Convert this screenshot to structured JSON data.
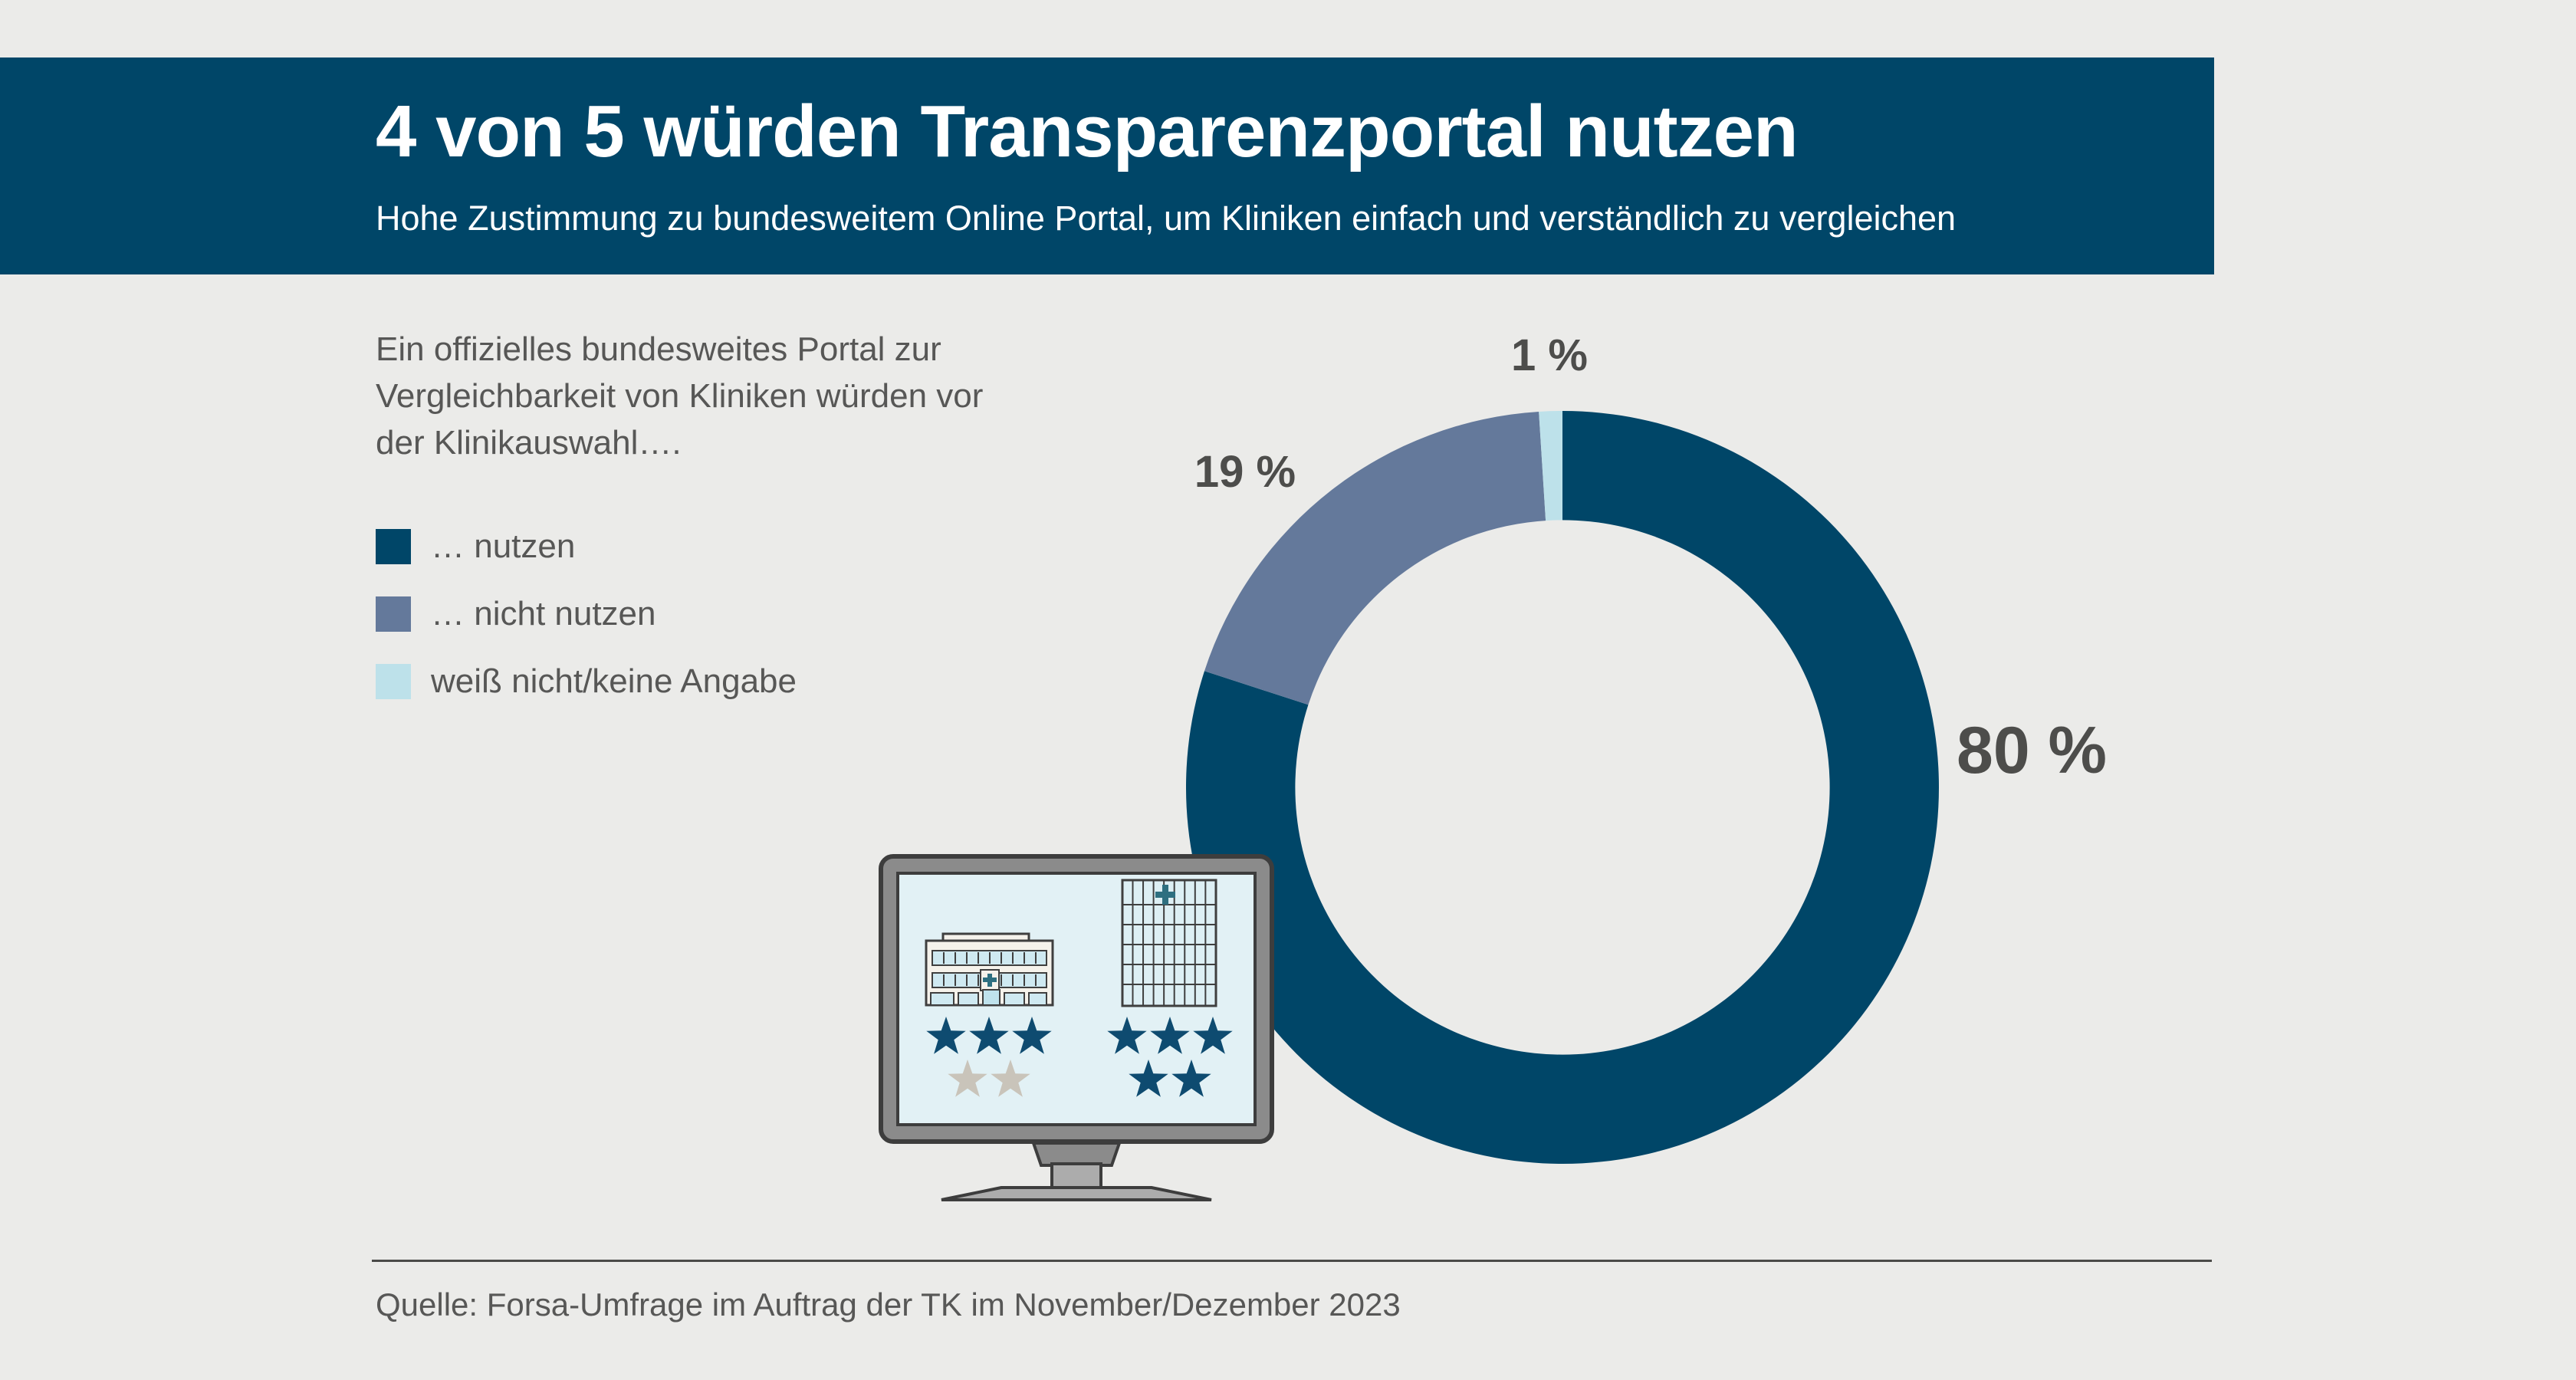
{
  "page": {
    "background_color": "#EBEBE9"
  },
  "header": {
    "title": "4 von 5 würden Transparenzportal nutzen",
    "subtitle": "Hohe Zustimmung zu bundesweitem Online Portal, um Kliniken einfach und verständlich zu vergleichen",
    "bar_color": "#004668",
    "text_color": "#FFFFFF"
  },
  "intro": {
    "lines": [
      "Ein offizielles bundesweites Portal zur",
      "Vergleichbarkeit von Kliniken würden vor",
      "der Klinikauswahl…."
    ]
  },
  "legend": {
    "items": [
      {
        "label": "… nutzen",
        "color": "#004668"
      },
      {
        "label": "… nicht nutzen",
        "color": "#64799B"
      },
      {
        "label": "weiß nicht/keine Angabe",
        "color": "#BDE1EA"
      }
    ]
  },
  "chart_data": {
    "type": "pie",
    "variant": "donut",
    "units": "%",
    "start_angle_deg": 0,
    "direction": "clockwise",
    "inner_radius_ratio": 0.71,
    "segments": [
      {
        "label": "… nutzen",
        "value": 80,
        "display": "80 %",
        "color": "#004668"
      },
      {
        "label": "… nicht nutzen",
        "value": 19,
        "display": "19 %",
        "color": "#64799B"
      },
      {
        "label": "weiß nicht/keine Angabe",
        "value": 1,
        "display": "1 %",
        "color": "#BDE1EA"
      }
    ]
  },
  "monitor": {
    "frame_color": "#8B8B8B",
    "stand_color": "#ACACAC",
    "outline_color": "#3D3D3D",
    "screen_color": "#E2F1F5",
    "window_color": "#CFE9F1",
    "facade_color": "#F5F2EB",
    "cross_color": "#2E6F80",
    "star_color_filled": "#0E4B70",
    "star_color_empty": "#C9C4BA",
    "hospitals": [
      {
        "building": "clinic-wide",
        "rating": 3,
        "max": 5
      },
      {
        "building": "clinic-tower",
        "rating": 5,
        "max": 5
      }
    ]
  },
  "source": {
    "text": "Quelle: Forsa-Umfrage im Auftrag der TK im November/Dezember 2023"
  }
}
